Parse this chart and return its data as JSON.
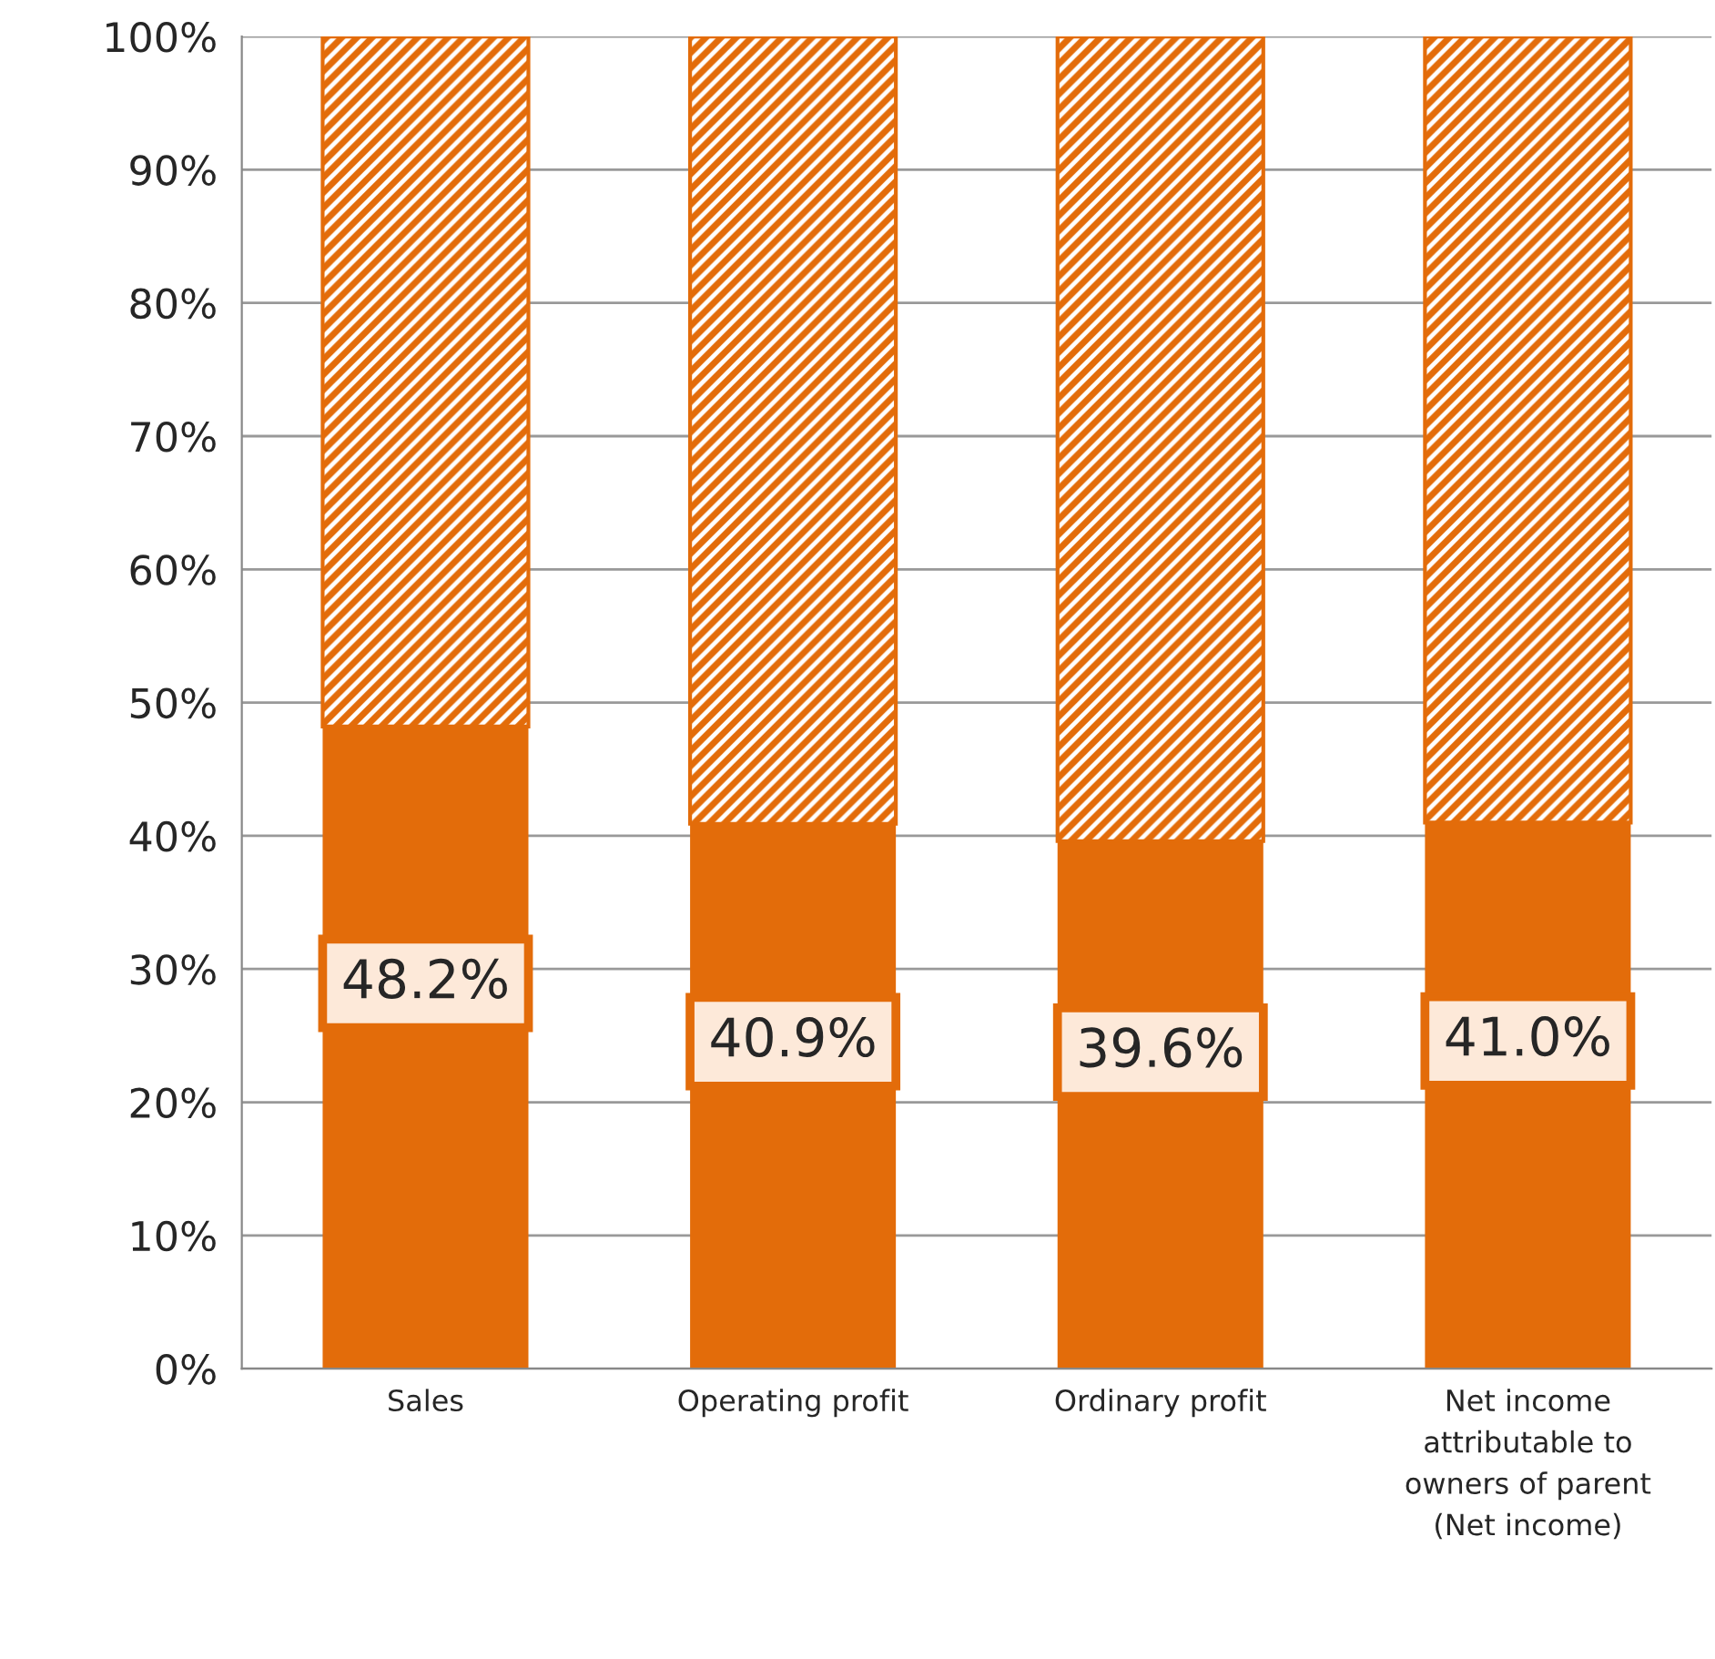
{
  "chart_data": {
    "type": "bar",
    "stacked": true,
    "categories": [
      "Sales",
      "Operating profit",
      "Ordinary profit",
      "Net income\nattributable to\nowners of parent\n(Net income)"
    ],
    "series": [
      {
        "color": "#e36c0a",
        "values": [
          48.2,
          40.9,
          39.6,
          41.0
        ],
        "value_labels": [
          "48.2%",
          "40.9%",
          "39.6%",
          "41.0%"
        ]
      },
      {
        "color": "#e36c0a",
        "values": [
          51.8,
          59.1,
          60.4,
          59.0
        ]
      }
    ],
    "ylim": [
      0,
      100
    ],
    "yticks": [
      {
        "value": 0,
        "label": "0%"
      },
      {
        "value": 10,
        "label": "10%"
      },
      {
        "value": 20,
        "label": "20%"
      },
      {
        "value": 30,
        "label": "30%"
      },
      {
        "value": 40,
        "label": "40%"
      },
      {
        "value": 50,
        "label": "50%"
      },
      {
        "value": 60,
        "label": "60%"
      },
      {
        "value": 70,
        "label": "70%"
      },
      {
        "value": 80,
        "label": "80%"
      },
      {
        "value": 90,
        "label": "90%"
      },
      {
        "value": 100,
        "label": "100%"
      }
    ],
    "grid": "y",
    "legend": false
  }
}
